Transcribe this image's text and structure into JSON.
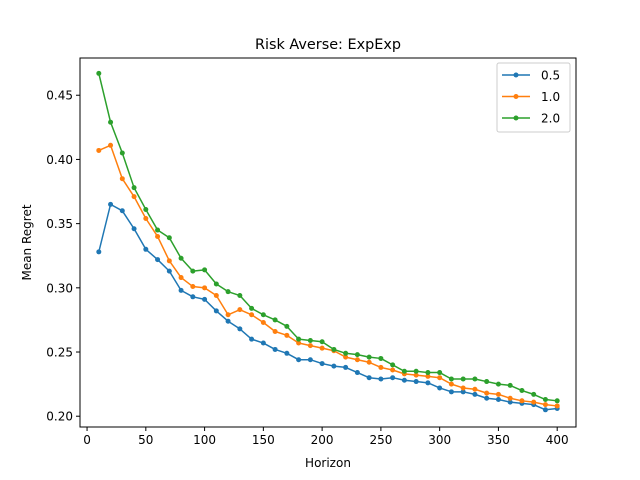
{
  "chart_data": {
    "type": "line",
    "title": "Risk Averse: ExpExp",
    "xlabel": "Horizon",
    "ylabel": "Mean Regret",
    "xlim": [
      -6,
      416
    ],
    "ylim": [
      0.1916,
      0.479
    ],
    "xticks": [
      0,
      50,
      100,
      150,
      200,
      250,
      300,
      350,
      400
    ],
    "yticks": [
      0.2,
      0.25,
      0.3,
      0.35,
      0.4,
      0.45
    ],
    "ytick_labels": [
      "0.20",
      "0.25",
      "0.30",
      "0.35",
      "0.40",
      "0.45"
    ],
    "grid": false,
    "legend_position": "top-right",
    "x": [
      10,
      20,
      30,
      40,
      50,
      60,
      70,
      80,
      90,
      100,
      110,
      120,
      130,
      140,
      150,
      160,
      170,
      180,
      190,
      200,
      210,
      220,
      230,
      240,
      250,
      260,
      270,
      280,
      290,
      300,
      310,
      320,
      330,
      340,
      350,
      360,
      370,
      380,
      390,
      400
    ],
    "series": [
      {
        "name": "0.5",
        "color": "#1f77b4",
        "values": [
          0.328,
          0.365,
          0.36,
          0.346,
          0.33,
          0.322,
          0.313,
          0.298,
          0.293,
          0.291,
          0.282,
          0.274,
          0.268,
          0.26,
          0.257,
          0.252,
          0.249,
          0.244,
          0.244,
          0.241,
          0.239,
          0.238,
          0.234,
          0.23,
          0.229,
          0.23,
          0.228,
          0.227,
          0.226,
          0.222,
          0.219,
          0.219,
          0.217,
          0.214,
          0.213,
          0.211,
          0.21,
          0.209,
          0.205,
          0.206
        ]
      },
      {
        "name": "1.0",
        "color": "#ff7f0e",
        "values": [
          0.407,
          0.411,
          0.385,
          0.371,
          0.354,
          0.34,
          0.321,
          0.308,
          0.301,
          0.3,
          0.294,
          0.279,
          0.283,
          0.279,
          0.273,
          0.266,
          0.263,
          0.257,
          0.255,
          0.253,
          0.251,
          0.246,
          0.244,
          0.242,
          0.238,
          0.236,
          0.233,
          0.232,
          0.231,
          0.23,
          0.225,
          0.222,
          0.221,
          0.218,
          0.217,
          0.214,
          0.212,
          0.211,
          0.209,
          0.208
        ]
      },
      {
        "name": "2.0",
        "color": "#2ca02c",
        "values": [
          0.467,
          0.429,
          0.405,
          0.378,
          0.361,
          0.345,
          0.339,
          0.323,
          0.313,
          0.314,
          0.303,
          0.297,
          0.294,
          0.284,
          0.279,
          0.275,
          0.27,
          0.26,
          0.259,
          0.258,
          0.252,
          0.249,
          0.248,
          0.246,
          0.245,
          0.24,
          0.235,
          0.235,
          0.234,
          0.234,
          0.229,
          0.229,
          0.229,
          0.227,
          0.225,
          0.224,
          0.22,
          0.217,
          0.213,
          0.212
        ]
      }
    ]
  }
}
